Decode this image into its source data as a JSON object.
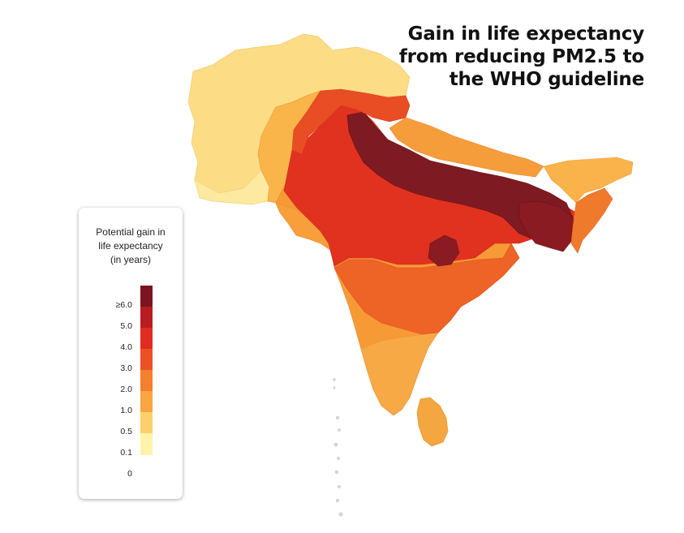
{
  "title": {
    "line1": "Gain in life expectancy",
    "line2": "from reducing PM2.5 to",
    "line3": "the WHO guideline"
  },
  "legend": {
    "title_line1": "Potential gain in",
    "title_line2": "life expectancy",
    "title_line3": "(in years)",
    "ticks": [
      "≥6.0",
      "5.0",
      "4.0",
      "3.0",
      "2.0",
      "1.0",
      "0.5",
      "0.1",
      "0"
    ],
    "colors": [
      "#7b1420",
      "#b81c21",
      "#e02c22",
      "#ec5024",
      "#f47f2c",
      "#f9a540",
      "#fcd16b",
      "#fef3a8"
    ]
  },
  "map": {
    "region": "south-asia",
    "colors": {
      "very_light": "#fef3a8",
      "light": "#fcd16b",
      "light_orange": "#f9a540",
      "orange": "#f47f2c",
      "dark_orange": "#ec5024",
      "red": "#e02c22",
      "dark_red": "#b81c21",
      "maroon": "#7b1420"
    }
  }
}
